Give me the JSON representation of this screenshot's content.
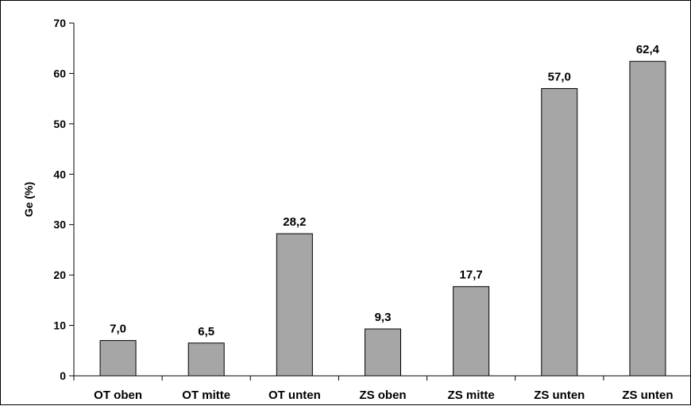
{
  "chart_data": {
    "type": "bar",
    "title": "",
    "xlabel": "",
    "ylabel": "Ge (%)",
    "ylim": [
      0,
      70
    ],
    "yticks": [
      0,
      10,
      20,
      30,
      40,
      50,
      60,
      70
    ],
    "grid": false,
    "legend": "none",
    "categories": [
      "OT oben",
      "OT mitte",
      "OT unten",
      "ZS oben",
      "ZS mitte",
      "ZS unten",
      "ZS unten"
    ],
    "values": [
      7.0,
      6.5,
      28.2,
      9.3,
      17.7,
      57.0,
      62.4
    ],
    "data_labels": [
      "7,0",
      "6,5",
      "28,2",
      "9,3",
      "17,7",
      "57,0",
      "62,4"
    ],
    "bar_color": "#a6a6a6",
    "bar_edge_color": "#000000"
  }
}
